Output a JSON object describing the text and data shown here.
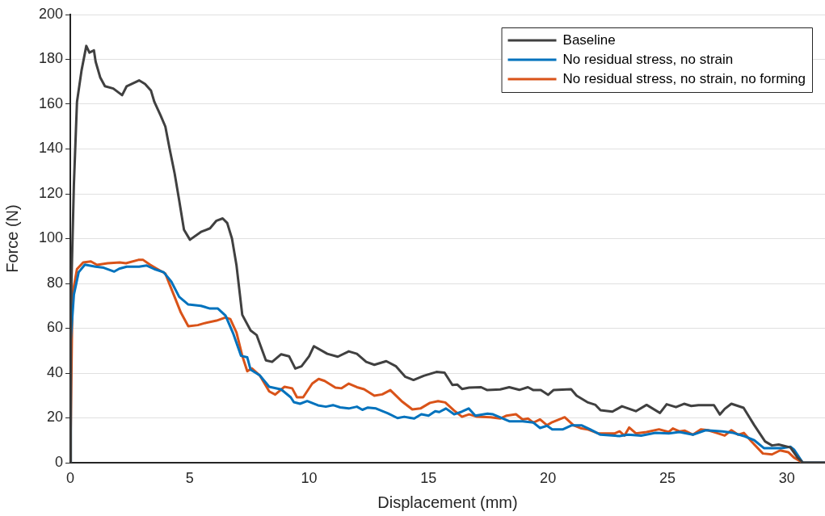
{
  "chart_data": {
    "type": "line",
    "xlabel": "Displacement (mm)",
    "ylabel": "Force (N)",
    "xlim": [
      0,
      31.6
    ],
    "xticks": [
      0,
      5,
      10,
      15,
      20,
      25,
      30
    ],
    "ylim": [
      0,
      200
    ],
    "yticks": [
      0,
      20,
      40,
      60,
      80,
      100,
      120,
      140,
      160,
      180,
      200
    ],
    "grid": "y",
    "legend": "top right",
    "marker": "none",
    "line_style": "solid",
    "series": [
      {
        "name": "Baseline",
        "color": "#404040",
        "x": [
          0,
          0.02,
          0.15,
          0.28,
          0.47,
          0.67,
          0.8,
          0.99,
          1.06,
          1.25,
          1.45,
          1.8,
          2.17,
          2.36,
          2.88,
          3.13,
          3.38,
          3.52,
          3.78,
          3.98,
          4.16,
          4.37,
          4.56,
          4.76,
          5.01,
          5.47,
          5.85,
          6.12,
          6.38,
          6.57,
          6.77,
          6.96,
          7.2,
          7.55,
          7.8,
          8.19,
          8.45,
          8.83,
          9.16,
          9.42,
          9.68,
          10.0,
          10.2,
          10.76,
          11.2,
          11.66,
          12.0,
          12.39,
          12.73,
          13.23,
          13.64,
          14.03,
          14.37,
          14.8,
          15.33,
          15.67,
          16.0,
          16.2,
          16.4,
          16.7,
          17.2,
          17.46,
          18.0,
          18.38,
          18.8,
          19.16,
          19.39,
          19.7,
          20.01,
          20.23,
          20.97,
          21.2,
          21.65,
          21.99,
          22.2,
          22.7,
          23.1,
          23.68,
          24.13,
          24.69,
          24.97,
          25.36,
          25.7,
          26.0,
          26.3,
          26.95,
          27.2,
          27.4,
          27.68,
          28.19,
          28.64,
          29.09,
          29.38,
          29.66,
          30.15,
          30.45,
          30.67,
          31.6
        ],
        "values": [
          0,
          68,
          124,
          161,
          175,
          186,
          183,
          184,
          179,
          172,
          168,
          167,
          164,
          168,
          170.6,
          169,
          166,
          161,
          155,
          150,
          140,
          129,
          117,
          104,
          99.5,
          103,
          104.6,
          108,
          109,
          107,
          100,
          88,
          66,
          59,
          57,
          45.7,
          45,
          48.4,
          47.5,
          42,
          43,
          47.5,
          52,
          48.6,
          47.3,
          49.7,
          48.6,
          45,
          43.7,
          45.3,
          43,
          38.3,
          36.9,
          38.8,
          40.5,
          40.2,
          34.7,
          34.9,
          32.9,
          33.5,
          33.7,
          32.4,
          32.7,
          33.7,
          32.5,
          33.7,
          32.4,
          32.4,
          30.3,
          32.4,
          32.8,
          29.9,
          27,
          25.8,
          23.4,
          22.8,
          25.2,
          23,
          25.8,
          22.2,
          26.1,
          24.8,
          26.3,
          25.3,
          25.7,
          25.7,
          21.5,
          24,
          26.3,
          24.5,
          16.7,
          9.5,
          7.7,
          8.1,
          6.8,
          2.3,
          0.1,
          0
        ]
      },
      {
        "name": "No residual stress, no strain",
        "color": "#0072bd",
        "x": [
          0,
          0.02,
          0.15,
          0.35,
          0.61,
          1.06,
          1.4,
          1.84,
          2.05,
          2.36,
          2.88,
          3.2,
          3.52,
          3.91,
          4.23,
          4.56,
          4.94,
          5.47,
          5.85,
          6.18,
          6.5,
          6.83,
          7.15,
          7.41,
          7.55,
          7.93,
          8.33,
          8.83,
          9.23,
          9.36,
          9.62,
          9.92,
          10.37,
          10.7,
          11.0,
          11.3,
          11.66,
          12.0,
          12.23,
          12.46,
          12.8,
          13.3,
          13.7,
          13.98,
          14.4,
          14.7,
          15.0,
          15.28,
          15.45,
          15.73,
          16.07,
          16.4,
          16.68,
          16.96,
          17.47,
          17.7,
          18.38,
          18.94,
          19.39,
          19.67,
          19.96,
          20.18,
          20.63,
          21.0,
          21.4,
          21.76,
          22.2,
          23.0,
          23.35,
          23.9,
          24.5,
          25.06,
          25.5,
          26.07,
          26.6,
          27.3,
          27.76,
          28.2,
          28.64,
          29.04,
          29.77,
          30.15,
          30.3,
          30.67,
          31.6
        ],
        "values": [
          0,
          55,
          75,
          85,
          88.4,
          87.5,
          87,
          85.3,
          86.6,
          87.5,
          87.5,
          88,
          86.4,
          85,
          80.8,
          74,
          70.6,
          70,
          68.8,
          68.8,
          65.6,
          57.4,
          47.7,
          47,
          41.5,
          39,
          33.9,
          32.7,
          29.2,
          27,
          26.3,
          27.5,
          25.6,
          25,
          25.7,
          24.7,
          24.2,
          25,
          23.6,
          24.6,
          24.2,
          22,
          19.9,
          20.5,
          19.7,
          21.6,
          21,
          23,
          22.6,
          24.2,
          21.6,
          22.8,
          24.2,
          21,
          21.9,
          21.6,
          18.5,
          18.5,
          17.9,
          15.5,
          16.5,
          14.9,
          14.9,
          16.7,
          16.7,
          14.9,
          12.5,
          11.9,
          12.5,
          12.1,
          13.3,
          13.1,
          13.7,
          12.5,
          14.5,
          14,
          13.3,
          11.9,
          10,
          6.5,
          6.5,
          7.1,
          5.9,
          0,
          0
        ]
      },
      {
        "name": "No residual stress, no strain, no forming",
        "color": "#d95319",
        "x": [
          0,
          0.09,
          0.28,
          0.54,
          0.86,
          1.12,
          1.56,
          2.07,
          2.33,
          2.85,
          3.05,
          3.35,
          3.65,
          3.98,
          4.16,
          4.37,
          4.63,
          4.94,
          5.34,
          5.6,
          6.12,
          6.5,
          6.7,
          6.96,
          7.2,
          7.41,
          7.6,
          7.93,
          8.33,
          8.58,
          8.97,
          9.29,
          9.49,
          9.75,
          10.13,
          10.4,
          10.65,
          11.1,
          11.36,
          11.66,
          12.0,
          12.3,
          12.73,
          13.06,
          13.4,
          13.87,
          14.32,
          14.66,
          15.06,
          15.4,
          15.7,
          16.07,
          16.4,
          16.7,
          17.03,
          17.6,
          18.0,
          18.27,
          18.66,
          18.94,
          19.17,
          19.39,
          19.67,
          19.96,
          20.18,
          20.7,
          21.07,
          21.4,
          21.65,
          22.1,
          22.8,
          23.0,
          23.2,
          23.4,
          23.68,
          24.13,
          24.65,
          25.06,
          25.23,
          25.5,
          25.73,
          26.07,
          26.4,
          26.7,
          27.06,
          27.4,
          27.68,
          27.96,
          28.2,
          28.53,
          29.0,
          29.38,
          29.72,
          30.06,
          30.3,
          30.67,
          31.6
        ],
        "values": [
          0,
          75,
          86.4,
          89.4,
          89.8,
          88.3,
          89,
          89.4,
          89,
          90.5,
          90.5,
          88.3,
          86.4,
          84.4,
          79.5,
          73.9,
          67,
          60.9,
          61.4,
          62.2,
          63.4,
          64.8,
          64.1,
          58.1,
          47.7,
          40.8,
          42.1,
          39,
          31.8,
          30.4,
          33.9,
          33.2,
          29.2,
          29.2,
          35.3,
          37.4,
          36.5,
          33.5,
          33.2,
          35.3,
          33.7,
          32.8,
          29.9,
          30.5,
          32.4,
          27.5,
          23.8,
          24.2,
          26.7,
          27.5,
          26.9,
          23.3,
          20.5,
          21.6,
          20.5,
          20.3,
          19.7,
          21,
          21.6,
          19.3,
          19.7,
          17.9,
          19.3,
          16.7,
          18.1,
          20.3,
          16.7,
          15.3,
          14.9,
          13.1,
          13.1,
          14,
          12.1,
          15.7,
          13.1,
          13.7,
          14.9,
          13.7,
          15.3,
          14,
          14.3,
          12.5,
          14.9,
          14.5,
          13.3,
          12.1,
          14.5,
          12.5,
          13.3,
          9.4,
          4.1,
          3.7,
          5.5,
          4.7,
          2.3,
          0,
          0
        ]
      }
    ]
  }
}
